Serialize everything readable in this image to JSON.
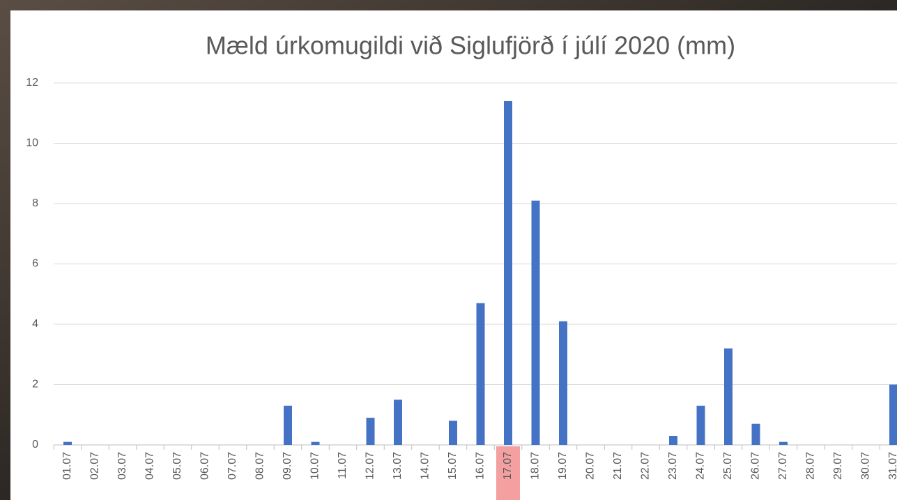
{
  "chart_data": {
    "type": "bar",
    "title": "Mæld úrkomugildi við Siglufjörð í júlí 2020 (mm)",
    "categories": [
      "01.07",
      "02.07",
      "03.07",
      "04.07",
      "05.07",
      "06.07",
      "07.07",
      "08.07",
      "09.07",
      "10.07",
      "11.07",
      "12.07",
      "13.07",
      "14.07",
      "15.07",
      "16.07",
      "17.07",
      "18.07",
      "19.07",
      "20.07",
      "21.07",
      "22.07",
      "23.07",
      "24.07",
      "25.07",
      "26.07",
      "27.07",
      "28.07",
      "29.07",
      "30.07",
      "31.07"
    ],
    "values": [
      0.1,
      0,
      0,
      0,
      0,
      0,
      0,
      0,
      1.3,
      0.1,
      0,
      0.9,
      1.5,
      0,
      0.8,
      4.7,
      11.4,
      8.1,
      4.1,
      0,
      0,
      0,
      0.3,
      1.3,
      3.2,
      0.7,
      0.1,
      0,
      0,
      0,
      2.0
    ],
    "color": "#4472c4",
    "highlight_index": 16,
    "highlight_color": "#f4a0a0",
    "ylim": [
      0,
      12
    ],
    "yticks": [
      0,
      2,
      4,
      6,
      8,
      10,
      12
    ],
    "grid": true
  }
}
